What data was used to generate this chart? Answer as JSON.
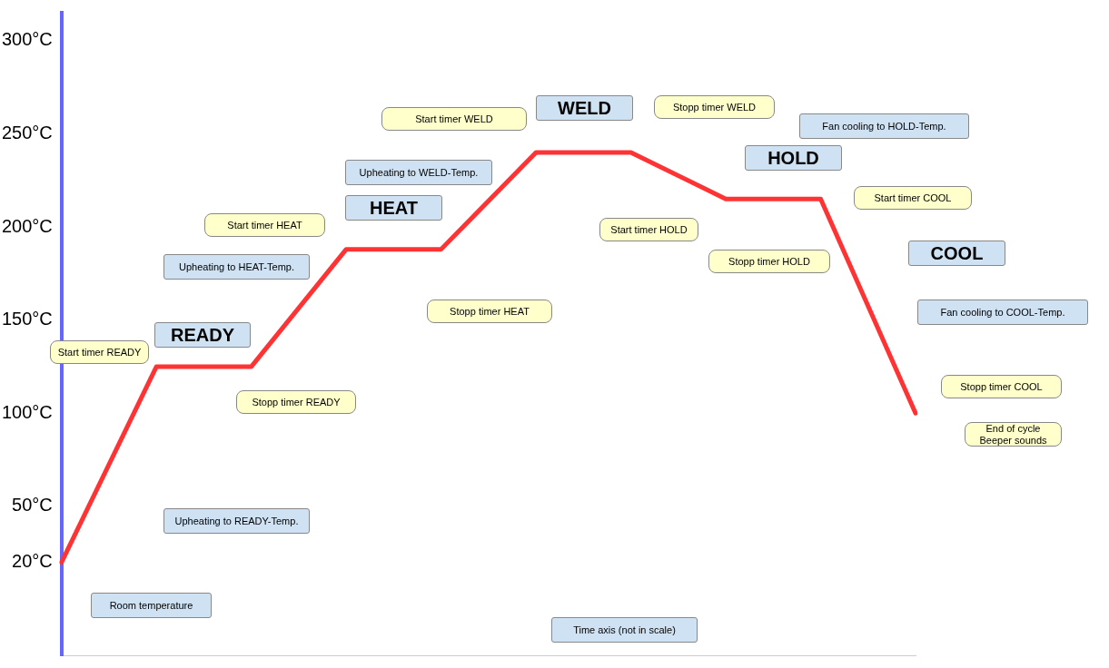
{
  "chart_data": {
    "type": "line",
    "xlabel": "Time axis (not in scale)",
    "categories": [
      null,
      null,
      null,
      null,
      null,
      null,
      null,
      null,
      null,
      null
    ],
    "series": [
      {
        "color": "#ff3333",
        "values": [
          20,
          125,
          125,
          188,
          188,
          240,
          240,
          215,
          215,
          100
        ]
      }
    ],
    "ylim": [
      -30,
      315
    ],
    "yticks": [
      {
        "value": 20,
        "label": "20°C"
      },
      {
        "value": 50,
        "label": "50°C"
      },
      {
        "value": 100,
        "label": "100°C"
      },
      {
        "value": 150,
        "label": "150°C"
      },
      {
        "value": 200,
        "label": "200°C"
      },
      {
        "value": 250,
        "label": "250°C"
      },
      {
        "value": 300,
        "label": "300°C"
      }
    ],
    "grid": false,
    "legend": false,
    "marker": "none",
    "line_style": "solid",
    "tick_labels": "y",
    "annotations": [
      "Room temperature",
      "Upheating to READY-Temp.",
      "READY",
      "Start timer READY",
      "Stopp timer READY",
      "Upheating to HEAT-Temp.",
      "HEAT",
      "Start timer HEAT",
      "Stopp timer HEAT",
      "Upheating to WELD-Temp.",
      "WELD",
      "Start timer WELD",
      "Stopp timer WELD",
      "HOLD",
      "Start timer HOLD",
      "Stopp timer HOLD",
      "Fan cooling to HOLD-Temp.",
      "Start timer COOL",
      "COOL",
      "Fan cooling to COOL-Temp.",
      "Stopp timer COOL",
      "End of cycle\nBeeper sounds"
    ]
  }
}
